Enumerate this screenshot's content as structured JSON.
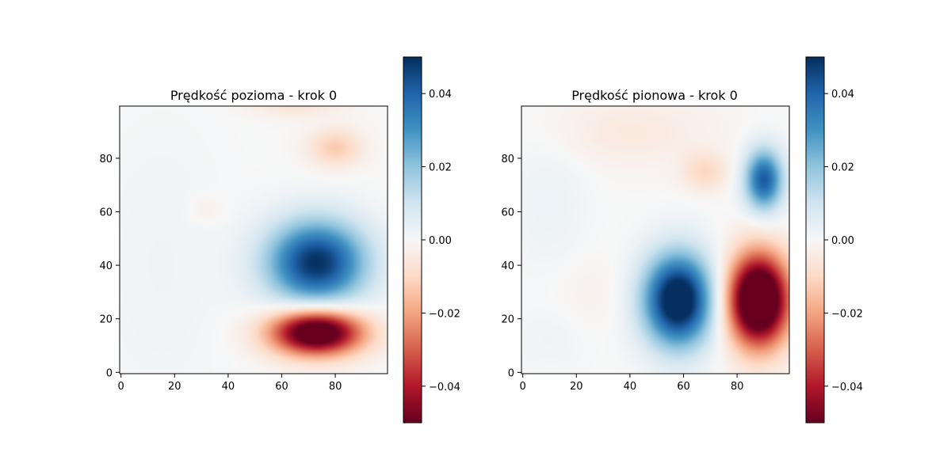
{
  "chart_data": [
    {
      "type": "heatmap",
      "title": "Prędkość pozioma - krok 0",
      "colormap": "RdBu",
      "xlim": [
        0,
        99
      ],
      "ylim": [
        0,
        99
      ],
      "x_ticks": [
        "0",
        "20",
        "40",
        "60",
        "80"
      ],
      "y_ticks": [
        "0",
        "20",
        "40",
        "60",
        "80"
      ],
      "colorbar": {
        "range": [
          -0.05,
          0.05
        ],
        "ticks": [
          "0.04",
          "0.02",
          "0.00",
          "−0.02",
          "−0.04"
        ]
      },
      "blobs": [
        {
          "x": 73,
          "y": 41,
          "sx": 13,
          "sy": 11,
          "value": 0.05
        },
        {
          "x": 73,
          "y": 15,
          "sx": 12,
          "sy": 6,
          "value": -0.065
        },
        {
          "x": 80,
          "y": 84,
          "sx": 7,
          "sy": 5,
          "value": -0.013
        },
        {
          "x": 65,
          "y": 102,
          "sx": 12,
          "sy": 4,
          "value": -0.009
        },
        {
          "x": 32,
          "y": 61,
          "sx": 5,
          "sy": 4,
          "value": -0.003
        },
        {
          "x": 15,
          "y": 40,
          "sx": 18,
          "sy": 40,
          "value": 0.002
        }
      ]
    },
    {
      "type": "heatmap",
      "title": "Prędkość pionowa - krok 0",
      "colormap": "RdBu",
      "xlim": [
        0,
        99
      ],
      "ylim": [
        0,
        99
      ],
      "x_ticks": [
        "0",
        "20",
        "40",
        "60",
        "80"
      ],
      "y_ticks": [
        "0",
        "20",
        "40",
        "60",
        "80"
      ],
      "colorbar": {
        "range": [
          -0.05,
          0.05
        ],
        "ticks": [
          "0.04",
          "0.02",
          "0.00",
          "−0.02",
          "−0.04"
        ]
      },
      "blobs": [
        {
          "x": 58,
          "y": 27,
          "sx": 9,
          "sy": 12,
          "value": 0.06
        },
        {
          "x": 88,
          "y": 27,
          "sx": 8,
          "sy": 12,
          "value": -0.075
        },
        {
          "x": 90,
          "y": 72,
          "sx": 5,
          "sy": 8,
          "value": 0.042
        },
        {
          "x": 68,
          "y": 75,
          "sx": 6,
          "sy": 5,
          "value": -0.01
        },
        {
          "x": 40,
          "y": 90,
          "sx": 22,
          "sy": 9,
          "value": -0.005
        },
        {
          "x": 10,
          "y": 65,
          "sx": 10,
          "sy": 20,
          "value": 0.003
        },
        {
          "x": 10,
          "y": 12,
          "sx": 10,
          "sy": 8,
          "value": 0.002
        },
        {
          "x": 25,
          "y": 30,
          "sx": 10,
          "sy": 10,
          "value": -0.002
        }
      ]
    }
  ]
}
